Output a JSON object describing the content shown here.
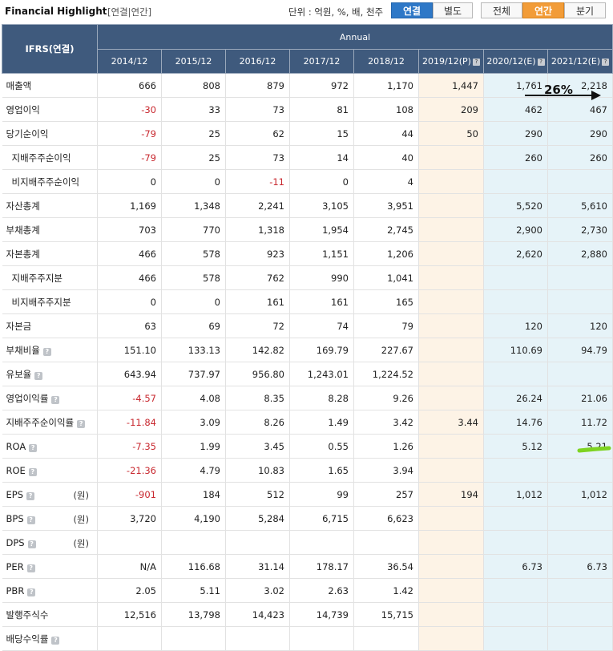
{
  "header": {
    "title": "Financial Highlight",
    "subtitle": "[연결|연간]",
    "unit": "단위 : 억원, %, 배, 천주",
    "btn_consolidated": "연결",
    "btn_separate": "별도",
    "btn_all": "전체",
    "btn_annual": "연간",
    "btn_quarter": "분기"
  },
  "table": {
    "corner": "IFRS(연결)",
    "annual": "Annual",
    "years": [
      "2014/12",
      "2015/12",
      "2016/12",
      "2017/12",
      "2018/12",
      "2019/12(P)",
      "2020/12(E)",
      "2021/12(E)"
    ],
    "rows": [
      {
        "label": "매출액",
        "values": [
          "666",
          "808",
          "879",
          "972",
          "1,170",
          "1,447",
          "1,761",
          "2,218"
        ]
      },
      {
        "label": "영업이익",
        "values": [
          "-30",
          "33",
          "73",
          "81",
          "108",
          "209",
          "462",
          "467"
        ]
      },
      {
        "label": "당기순이익",
        "values": [
          "-79",
          "25",
          "62",
          "15",
          "44",
          "50",
          "290",
          "290"
        ]
      },
      {
        "label": "지배주주순이익",
        "sub": true,
        "values": [
          "-79",
          "25",
          "73",
          "14",
          "40",
          "",
          "260",
          "260"
        ]
      },
      {
        "label": "비지배주주순이익",
        "sub": true,
        "values": [
          "0",
          "0",
          "-11",
          "0",
          "4",
          "",
          "",
          ""
        ]
      },
      {
        "label": "자산총계",
        "values": [
          "1,169",
          "1,348",
          "2,241",
          "3,105",
          "3,951",
          "",
          "5,520",
          "5,610"
        ]
      },
      {
        "label": "부채총계",
        "values": [
          "703",
          "770",
          "1,318",
          "1,954",
          "2,745",
          "",
          "2,900",
          "2,730"
        ]
      },
      {
        "label": "자본총계",
        "values": [
          "466",
          "578",
          "923",
          "1,151",
          "1,206",
          "",
          "2,620",
          "2,880"
        ]
      },
      {
        "label": "지배주주지분",
        "sub": true,
        "values": [
          "466",
          "578",
          "762",
          "990",
          "1,041",
          "",
          "",
          ""
        ]
      },
      {
        "label": "비지배주주지분",
        "sub": true,
        "values": [
          "0",
          "0",
          "161",
          "161",
          "165",
          "",
          "",
          ""
        ]
      },
      {
        "label": "자본금",
        "values": [
          "63",
          "69",
          "72",
          "74",
          "79",
          "",
          "120",
          "120"
        ]
      },
      {
        "label": "부채비율",
        "q": true,
        "values": [
          "151.10",
          "133.13",
          "142.82",
          "169.79",
          "227.67",
          "",
          "110.69",
          "94.79"
        ]
      },
      {
        "label": "유보율",
        "q": true,
        "values": [
          "643.94",
          "737.97",
          "956.80",
          "1,243.01",
          "1,224.52",
          "",
          "",
          ""
        ]
      },
      {
        "label": "영업이익률",
        "q": true,
        "values": [
          "-4.57",
          "4.08",
          "8.35",
          "8.28",
          "9.26",
          "",
          "26.24",
          "21.06"
        ]
      },
      {
        "label": "지배주주순이익률",
        "q": true,
        "values": [
          "-11.84",
          "3.09",
          "8.26",
          "1.49",
          "3.42",
          "3.44",
          "14.76",
          "11.72"
        ]
      },
      {
        "label": "ROA",
        "q": true,
        "values": [
          "-7.35",
          "1.99",
          "3.45",
          "0.55",
          "1.26",
          "",
          "5.12",
          "5.21"
        ]
      },
      {
        "label": "ROE",
        "q": true,
        "values": [
          "-21.36",
          "4.79",
          "10.83",
          "1.65",
          "3.94",
          "",
          "",
          ""
        ]
      },
      {
        "label": "EPS",
        "q": true,
        "unit": "(원)",
        "values": [
          "-901",
          "184",
          "512",
          "99",
          "257",
          "194",
          "1,012",
          "1,012"
        ]
      },
      {
        "label": "BPS",
        "q": true,
        "unit": "(원)",
        "values": [
          "3,720",
          "4,190",
          "5,284",
          "6,715",
          "6,623",
          "",
          "",
          ""
        ]
      },
      {
        "label": "DPS",
        "q": true,
        "unit": "(원)",
        "values": [
          "",
          "",
          "",
          "",
          "",
          "",
          "",
          ""
        ]
      },
      {
        "label": "PER",
        "q": true,
        "values": [
          "N/A",
          "116.68",
          "31.14",
          "178.17",
          "36.54",
          "",
          "6.73",
          "6.73"
        ]
      },
      {
        "label": "PBR",
        "q": true,
        "values": [
          "2.05",
          "5.11",
          "3.02",
          "2.63",
          "1.42",
          "",
          "",
          ""
        ]
      },
      {
        "label": "발행주식수",
        "values": [
          "12,516",
          "13,798",
          "14,423",
          "14,739",
          "15,715",
          "",
          "",
          ""
        ]
      },
      {
        "label": "배당수익률",
        "q": true,
        "values": [
          "",
          "",
          "",
          "",
          "",
          "",
          "",
          ""
        ]
      }
    ]
  },
  "annotation": {
    "growth_label": "26%"
  },
  "colors": {
    "header_bg": "#3f5a7d",
    "negative": "#c8282f",
    "projection_bg": "#fdf3e6",
    "estimate_bg": "#e6f3f8",
    "highlight_green": "#7ed321"
  }
}
